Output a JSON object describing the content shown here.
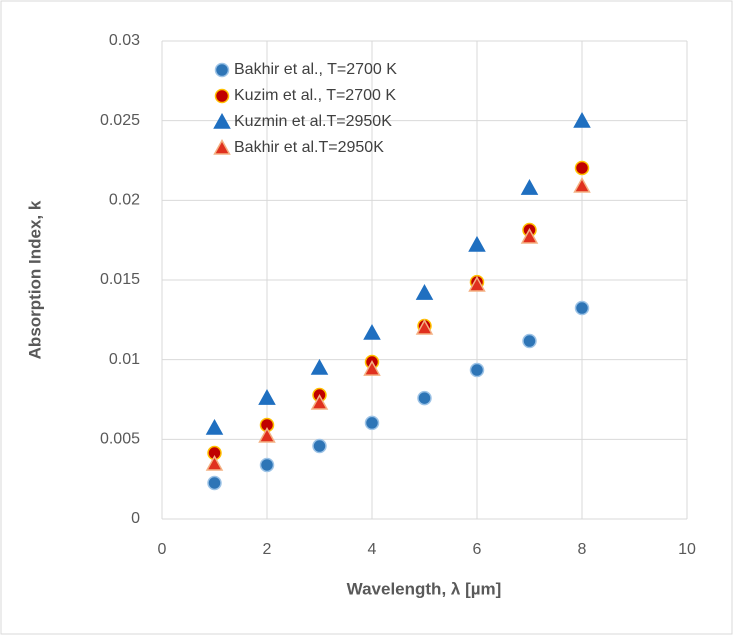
{
  "chart_data": {
    "type": "scatter",
    "xlabel": "Wavelength, λ [µm]",
    "ylabel": "Absorption Index, k",
    "xlim": [
      0,
      10
    ],
    "xticks": [
      0,
      2,
      4,
      6,
      8,
      10
    ],
    "ylim": [
      0,
      0.03
    ],
    "yticks": [
      0,
      0.005,
      0.01,
      0.015,
      0.02,
      0.025,
      0.03
    ],
    "grid": true,
    "legend": "upper left",
    "series": [
      {
        "name": "Bakhir et al., T=2700 K",
        "color": "#2e75b6",
        "edgecolor": "#9dc3e6",
        "marker": "circle",
        "x": [
          1,
          2,
          3,
          4,
          5,
          6,
          7,
          8
        ],
        "values": [
          0.00226,
          0.00339,
          0.00458,
          0.00603,
          0.00759,
          0.00935,
          0.01117,
          0.01324
        ]
      },
      {
        "name": "Kuzim et al., T=2700 K",
        "color": "#c00000",
        "edgecolor": "#ffc000",
        "marker": "circle",
        "x": [
          1,
          2,
          3,
          4,
          5,
          6,
          7,
          8
        ],
        "values": [
          0.00414,
          0.0059,
          0.00778,
          0.00985,
          0.01211,
          0.01487,
          0.01814,
          0.02203
        ]
      },
      {
        "name": "Kuzmin et al.T=2950K",
        "color": "#1f6fc0",
        "edgecolor": "#1f6fc0",
        "marker": "triangle",
        "x": [
          1,
          2,
          3,
          4,
          5,
          6,
          7,
          8
        ],
        "values": [
          0.00571,
          0.00759,
          0.00948,
          0.01167,
          0.01418,
          0.0172,
          0.02077,
          0.02498
        ]
      },
      {
        "name": "Bakhir et al.T=2950K",
        "color": "#e0301e",
        "edgecolor": "#f4b183",
        "marker": "triangle",
        "x": [
          1,
          2,
          3,
          4,
          5,
          6,
          7,
          8
        ],
        "values": [
          0.00345,
          0.00521,
          0.00728,
          0.00941,
          0.01199,
          0.01469,
          0.0177,
          0.0209
        ]
      }
    ]
  }
}
